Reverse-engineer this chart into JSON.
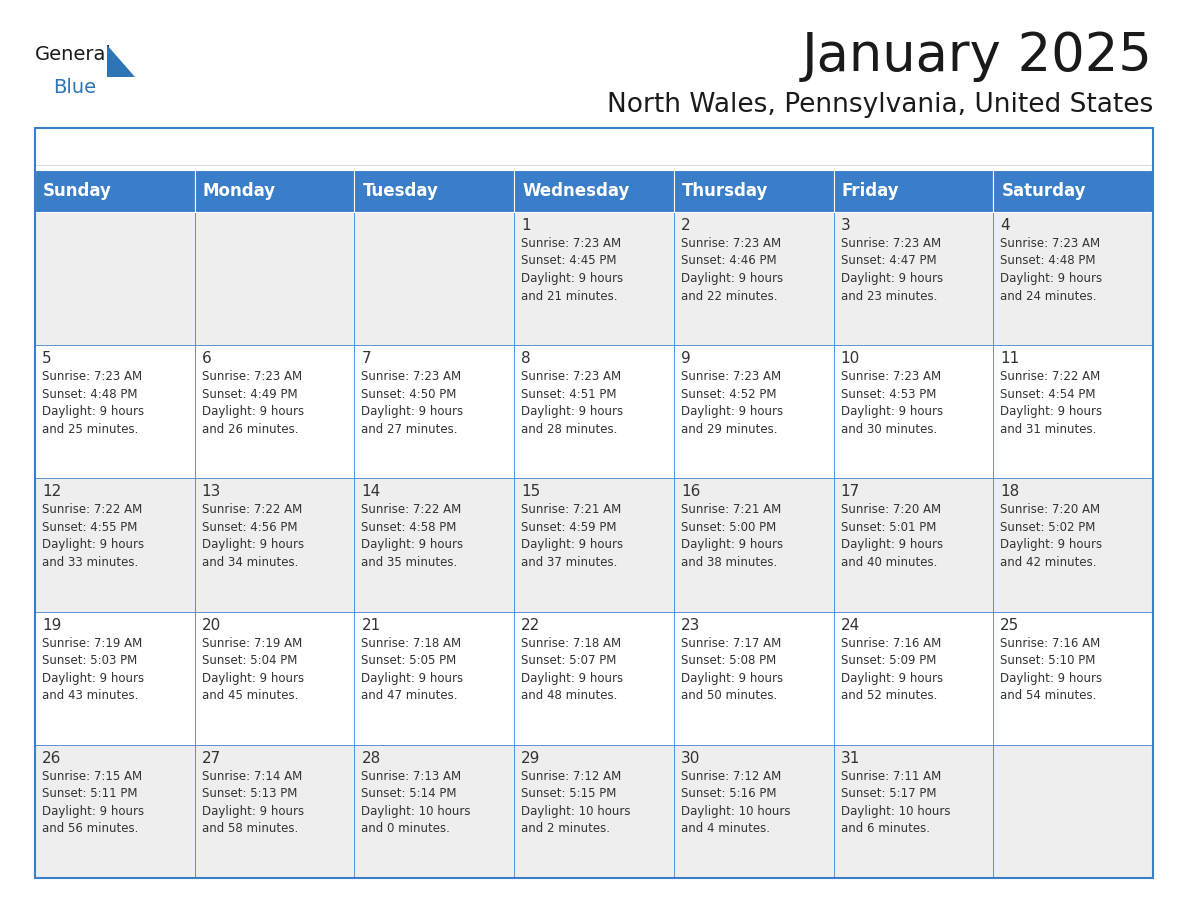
{
  "title": "January 2025",
  "subtitle": "North Wales, Pennsylvania, United States",
  "days_of_week": [
    "Sunday",
    "Monday",
    "Tuesday",
    "Wednesday",
    "Thursday",
    "Friday",
    "Saturday"
  ],
  "header_bg": "#3A7DC9",
  "header_text": "#FFFFFF",
  "row_bg_light": "#EEEEEE",
  "row_bg_white": "#FFFFFF",
  "border_color": "#3A7DC9",
  "day_number_color": "#333333",
  "cell_text_color": "#333333",
  "calendar": [
    [
      {
        "day": "",
        "info": ""
      },
      {
        "day": "",
        "info": ""
      },
      {
        "day": "",
        "info": ""
      },
      {
        "day": "1",
        "info": "Sunrise: 7:23 AM\nSunset: 4:45 PM\nDaylight: 9 hours\nand 21 minutes."
      },
      {
        "day": "2",
        "info": "Sunrise: 7:23 AM\nSunset: 4:46 PM\nDaylight: 9 hours\nand 22 minutes."
      },
      {
        "day": "3",
        "info": "Sunrise: 7:23 AM\nSunset: 4:47 PM\nDaylight: 9 hours\nand 23 minutes."
      },
      {
        "day": "4",
        "info": "Sunrise: 7:23 AM\nSunset: 4:48 PM\nDaylight: 9 hours\nand 24 minutes."
      }
    ],
    [
      {
        "day": "5",
        "info": "Sunrise: 7:23 AM\nSunset: 4:48 PM\nDaylight: 9 hours\nand 25 minutes."
      },
      {
        "day": "6",
        "info": "Sunrise: 7:23 AM\nSunset: 4:49 PM\nDaylight: 9 hours\nand 26 minutes."
      },
      {
        "day": "7",
        "info": "Sunrise: 7:23 AM\nSunset: 4:50 PM\nDaylight: 9 hours\nand 27 minutes."
      },
      {
        "day": "8",
        "info": "Sunrise: 7:23 AM\nSunset: 4:51 PM\nDaylight: 9 hours\nand 28 minutes."
      },
      {
        "day": "9",
        "info": "Sunrise: 7:23 AM\nSunset: 4:52 PM\nDaylight: 9 hours\nand 29 minutes."
      },
      {
        "day": "10",
        "info": "Sunrise: 7:23 AM\nSunset: 4:53 PM\nDaylight: 9 hours\nand 30 minutes."
      },
      {
        "day": "11",
        "info": "Sunrise: 7:22 AM\nSunset: 4:54 PM\nDaylight: 9 hours\nand 31 minutes."
      }
    ],
    [
      {
        "day": "12",
        "info": "Sunrise: 7:22 AM\nSunset: 4:55 PM\nDaylight: 9 hours\nand 33 minutes."
      },
      {
        "day": "13",
        "info": "Sunrise: 7:22 AM\nSunset: 4:56 PM\nDaylight: 9 hours\nand 34 minutes."
      },
      {
        "day": "14",
        "info": "Sunrise: 7:22 AM\nSunset: 4:58 PM\nDaylight: 9 hours\nand 35 minutes."
      },
      {
        "day": "15",
        "info": "Sunrise: 7:21 AM\nSunset: 4:59 PM\nDaylight: 9 hours\nand 37 minutes."
      },
      {
        "day": "16",
        "info": "Sunrise: 7:21 AM\nSunset: 5:00 PM\nDaylight: 9 hours\nand 38 minutes."
      },
      {
        "day": "17",
        "info": "Sunrise: 7:20 AM\nSunset: 5:01 PM\nDaylight: 9 hours\nand 40 minutes."
      },
      {
        "day": "18",
        "info": "Sunrise: 7:20 AM\nSunset: 5:02 PM\nDaylight: 9 hours\nand 42 minutes."
      }
    ],
    [
      {
        "day": "19",
        "info": "Sunrise: 7:19 AM\nSunset: 5:03 PM\nDaylight: 9 hours\nand 43 minutes."
      },
      {
        "day": "20",
        "info": "Sunrise: 7:19 AM\nSunset: 5:04 PM\nDaylight: 9 hours\nand 45 minutes."
      },
      {
        "day": "21",
        "info": "Sunrise: 7:18 AM\nSunset: 5:05 PM\nDaylight: 9 hours\nand 47 minutes."
      },
      {
        "day": "22",
        "info": "Sunrise: 7:18 AM\nSunset: 5:07 PM\nDaylight: 9 hours\nand 48 minutes."
      },
      {
        "day": "23",
        "info": "Sunrise: 7:17 AM\nSunset: 5:08 PM\nDaylight: 9 hours\nand 50 minutes."
      },
      {
        "day": "24",
        "info": "Sunrise: 7:16 AM\nSunset: 5:09 PM\nDaylight: 9 hours\nand 52 minutes."
      },
      {
        "day": "25",
        "info": "Sunrise: 7:16 AM\nSunset: 5:10 PM\nDaylight: 9 hours\nand 54 minutes."
      }
    ],
    [
      {
        "day": "26",
        "info": "Sunrise: 7:15 AM\nSunset: 5:11 PM\nDaylight: 9 hours\nand 56 minutes."
      },
      {
        "day": "27",
        "info": "Sunrise: 7:14 AM\nSunset: 5:13 PM\nDaylight: 9 hours\nand 58 minutes."
      },
      {
        "day": "28",
        "info": "Sunrise: 7:13 AM\nSunset: 5:14 PM\nDaylight: 10 hours\nand 0 minutes."
      },
      {
        "day": "29",
        "info": "Sunrise: 7:12 AM\nSunset: 5:15 PM\nDaylight: 10 hours\nand 2 minutes."
      },
      {
        "day": "30",
        "info": "Sunrise: 7:12 AM\nSunset: 5:16 PM\nDaylight: 10 hours\nand 4 minutes."
      },
      {
        "day": "31",
        "info": "Sunrise: 7:11 AM\nSunset: 5:17 PM\nDaylight: 10 hours\nand 6 minutes."
      },
      {
        "day": "",
        "info": ""
      }
    ]
  ],
  "logo_text_general": "General",
  "logo_text_blue": "Blue",
  "logo_triangle_color": "#2E75B6",
  "title_fontsize": 38,
  "subtitle_fontsize": 19,
  "header_fontsize": 12,
  "day_num_fontsize": 11,
  "cell_text_fontsize": 8.5
}
